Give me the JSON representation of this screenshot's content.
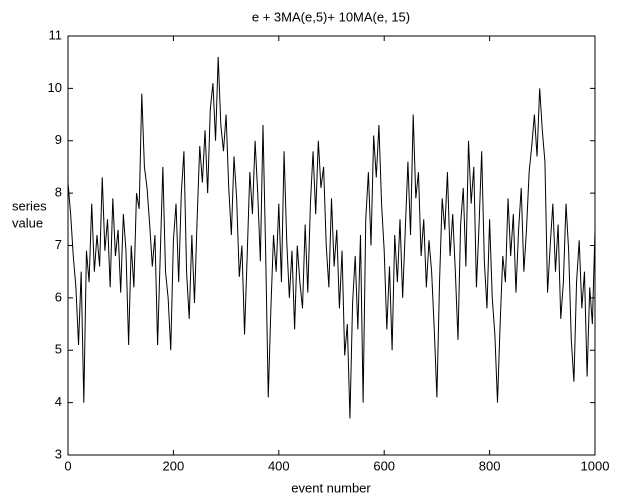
{
  "chart_data": {
    "type": "line",
    "title": "e + 3MA(e,5)+ 10MA(e, 15)",
    "xlabel": "event number",
    "ylabel": [
      "series",
      "value"
    ],
    "xlim": [
      0,
      1000
    ],
    "xticks": [
      0,
      200,
      400,
      600,
      800,
      1000
    ],
    "ylim": [
      3,
      11
    ],
    "yticks": [
      3,
      4,
      5,
      6,
      7,
      8,
      9,
      10,
      11
    ],
    "color": "#000000",
    "x": [
      0,
      5,
      10,
      15,
      20,
      25,
      30,
      35,
      40,
      45,
      50,
      55,
      60,
      65,
      70,
      75,
      80,
      85,
      90,
      95,
      100,
      105,
      110,
      115,
      120,
      125,
      130,
      135,
      140,
      145,
      150,
      155,
      160,
      165,
      170,
      175,
      180,
      185,
      190,
      195,
      200,
      205,
      210,
      215,
      220,
      225,
      230,
      235,
      240,
      245,
      250,
      255,
      260,
      265,
      270,
      275,
      280,
      285,
      290,
      295,
      300,
      305,
      310,
      315,
      320,
      325,
      330,
      335,
      340,
      345,
      350,
      355,
      360,
      365,
      370,
      375,
      380,
      385,
      390,
      395,
      400,
      405,
      410,
      415,
      420,
      425,
      430,
      435,
      440,
      445,
      450,
      455,
      460,
      465,
      470,
      475,
      480,
      485,
      490,
      495,
      500,
      505,
      510,
      515,
      520,
      525,
      530,
      535,
      540,
      545,
      550,
      555,
      560,
      565,
      570,
      575,
      580,
      585,
      590,
      595,
      600,
      605,
      610,
      615,
      620,
      625,
      630,
      635,
      640,
      645,
      650,
      655,
      660,
      665,
      670,
      675,
      680,
      685,
      690,
      695,
      700,
      705,
      710,
      715,
      720,
      725,
      730,
      735,
      740,
      745,
      750,
      755,
      760,
      765,
      770,
      775,
      780,
      785,
      790,
      795,
      800,
      805,
      810,
      815,
      820,
      825,
      830,
      835,
      840,
      845,
      850,
      855,
      860,
      865,
      870,
      875,
      880,
      885,
      890,
      895,
      900,
      905,
      910,
      915,
      920,
      925,
      930,
      935,
      940,
      945,
      950,
      955,
      960,
      965,
      970,
      975,
      980,
      985,
      990,
      995,
      1000
    ],
    "values": [
      8.2,
      7.6,
      6.8,
      6.2,
      5.1,
      6.5,
      4.0,
      6.9,
      6.3,
      7.8,
      6.5,
      7.2,
      6.6,
      8.3,
      6.9,
      7.5,
      6.2,
      7.9,
      6.8,
      7.3,
      6.1,
      7.6,
      6.9,
      5.1,
      7.0,
      6.2,
      8.0,
      7.7,
      9.9,
      8.5,
      8.1,
      7.4,
      6.6,
      7.2,
      5.1,
      6.8,
      8.5,
      6.5,
      6.0,
      5.0,
      7.1,
      7.8,
      6.3,
      8.0,
      8.8,
      6.5,
      5.6,
      7.2,
      5.9,
      7.5,
      8.9,
      8.2,
      9.2,
      8.0,
      9.6,
      10.1,
      9.0,
      10.6,
      9.3,
      8.8,
      9.5,
      8.1,
      7.2,
      8.7,
      7.9,
      6.4,
      7.0,
      5.3,
      6.8,
      8.4,
      7.6,
      9.0,
      8.0,
      6.7,
      9.3,
      6.9,
      4.1,
      5.8,
      7.2,
      6.5,
      7.8,
      6.3,
      8.8,
      7.1,
      6.0,
      6.9,
      5.4,
      7.0,
      6.3,
      5.8,
      7.4,
      6.1,
      7.8,
      8.8,
      7.6,
      9.0,
      8.1,
      8.5,
      7.0,
      6.2,
      7.9,
      6.6,
      7.3,
      5.8,
      6.9,
      4.9,
      5.5,
      3.7,
      5.9,
      6.8,
      5.4,
      7.2,
      4.0,
      7.5,
      8.4,
      7.0,
      9.1,
      8.3,
      9.3,
      7.8,
      6.9,
      5.4,
      6.6,
      5.0,
      7.2,
      6.3,
      7.5,
      6.0,
      7.3,
      8.6,
      7.2,
      9.5,
      7.9,
      8.4,
      6.8,
      7.5,
      6.2,
      7.1,
      6.5,
      5.4,
      4.1,
      6.3,
      7.9,
      7.3,
      8.4,
      6.8,
      7.6,
      6.5,
      5.2,
      7.4,
      8.1,
      6.6,
      9.0,
      7.8,
      8.5,
      6.2,
      7.4,
      8.8,
      6.7,
      5.8,
      7.5,
      6.0,
      5.3,
      4.0,
      5.5,
      6.8,
      6.3,
      7.9,
      6.8,
      7.6,
      6.1,
      7.3,
      8.1,
      6.5,
      7.3,
      8.4,
      8.9,
      9.5,
      8.7,
      10.0,
      9.2,
      8.6,
      6.1,
      7.0,
      7.8,
      6.5,
      7.4,
      5.6,
      6.3,
      7.8,
      6.9,
      5.2,
      4.4,
      6.3,
      7.1,
      5.8,
      6.5,
      4.5,
      6.2,
      5.5,
      7.3
    ]
  }
}
